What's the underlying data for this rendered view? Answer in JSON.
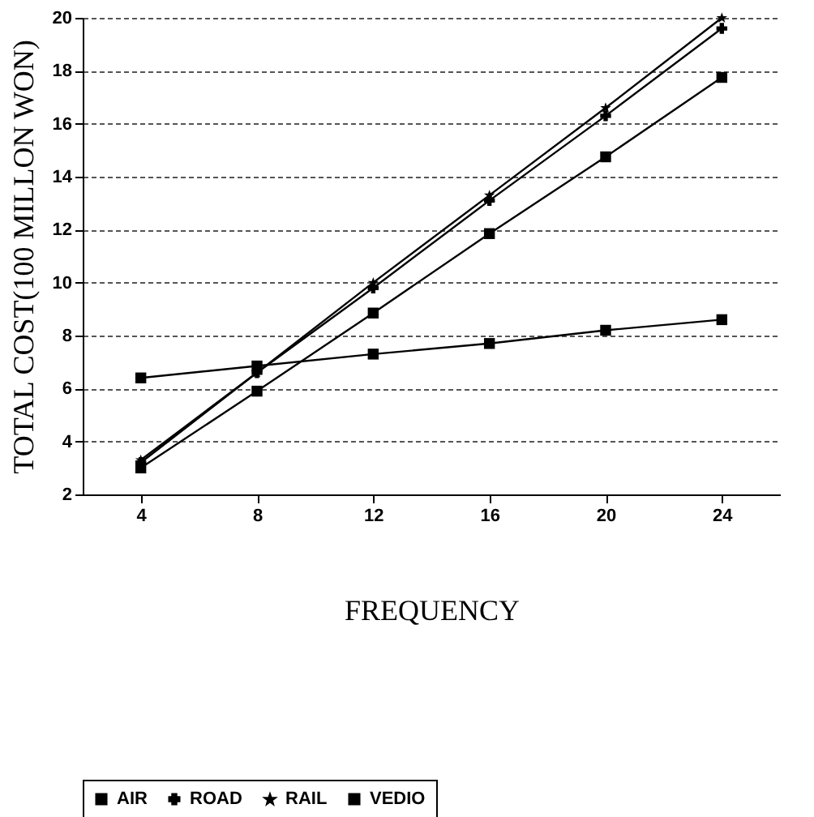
{
  "chart_data": {
    "type": "line",
    "xlabel": "FREQUENCY",
    "ylabel": "TOTAL COST(100 MILLON WON)",
    "x": [
      4,
      8,
      12,
      16,
      20,
      24
    ],
    "series": [
      {
        "name": "AIR",
        "color": "#000000",
        "marker": "square",
        "values": [
          3.0,
          5.9,
          8.85,
          11.85,
          14.75,
          17.75
        ]
      },
      {
        "name": "ROAD",
        "color": "#000000",
        "marker": "cross",
        "values": [
          3.2,
          6.6,
          9.8,
          13.1,
          16.3,
          19.6
        ]
      },
      {
        "name": "RAIL",
        "color": "#000000",
        "marker": "star",
        "values": [
          3.3,
          6.6,
          10.0,
          13.3,
          16.6,
          20.0
        ]
      },
      {
        "name": "VEDIO",
        "color": "#000000",
        "marker": "square",
        "values": [
          6.4,
          6.85,
          7.3,
          7.7,
          8.2,
          8.6
        ]
      }
    ],
    "xlim": [
      2,
      26
    ],
    "xticks": [
      4,
      8,
      12,
      16,
      20,
      24
    ],
    "ylim": [
      2,
      20
    ],
    "yticks": [
      2,
      4,
      6,
      8,
      10,
      12,
      14,
      16,
      18,
      20
    ],
    "grid": "y",
    "legend": "bottom",
    "line_style": "solid"
  }
}
